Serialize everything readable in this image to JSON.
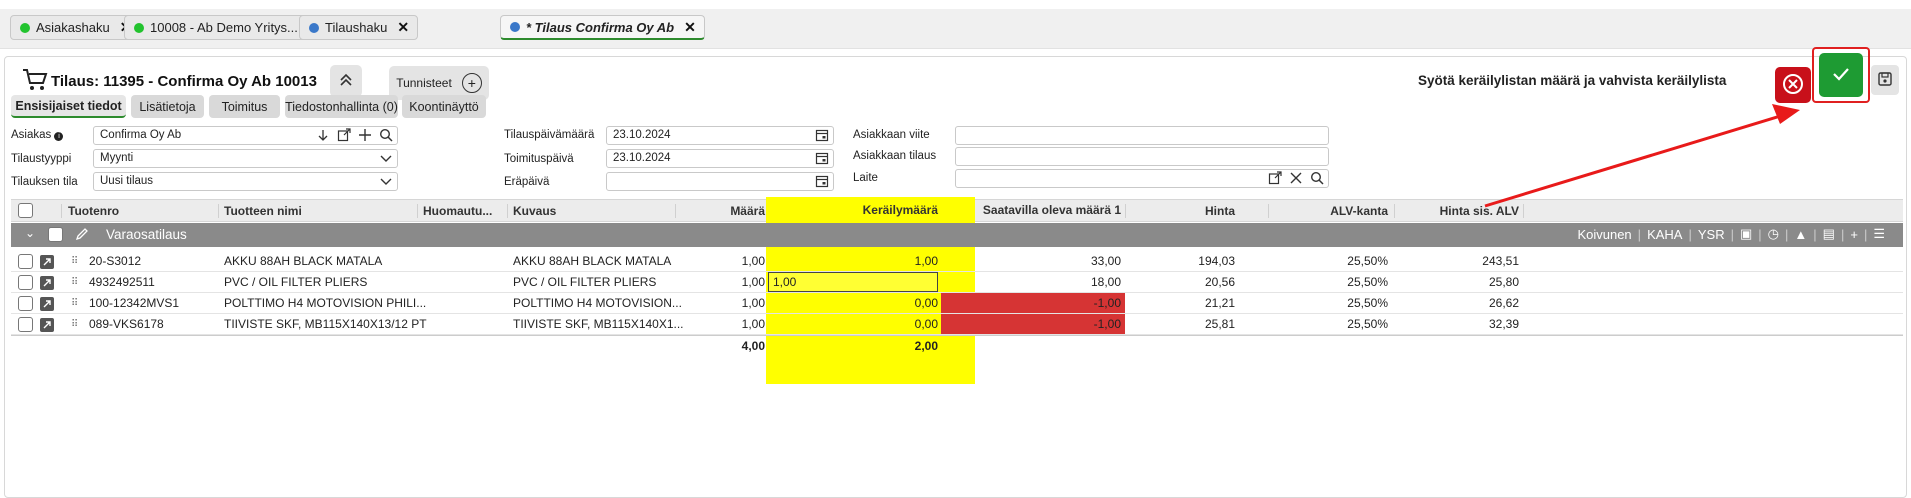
{
  "tabs": [
    {
      "label": "Asiakashaku",
      "dot": "#22c32e"
    },
    {
      "label": "10008 - Ab Demo Yritys...",
      "dot": "#22c32e"
    },
    {
      "label": "Tilaushaku",
      "dot": "#3a78c9"
    },
    {
      "label": "* Tilaus Confirma Oy Ab",
      "dot": "#3a78c9"
    }
  ],
  "header": {
    "title": "Tilaus: 11395 - Confirma Oy Ab 10013",
    "tags_label": "Tunnisteet",
    "instruction": "Syötä keräilylistan määrä ja vahvista keräilylista"
  },
  "subtabs": [
    "Ensisijaiset tiedot",
    "Lisätietoja",
    "Toimitus",
    "Tiedostonhallinta (0)",
    "Koontinäyttö"
  ],
  "form": {
    "customer_label": "Asiakas",
    "customer_value": "Confirma Oy Ab",
    "order_type_label": "Tilaustyyppi",
    "order_type_value": "Myynti",
    "order_status_label": "Tilauksen tila",
    "order_status_value": "Uusi tilaus",
    "order_date_label": "Tilauspäivämäärä",
    "order_date_value": "23.10.2024",
    "delivery_date_label": "Toimituspäivä",
    "delivery_date_value": "23.10.2024",
    "due_date_label": "Eräpäivä",
    "due_date_value": "",
    "customer_ref_label": "Asiakkaan viite",
    "customer_order_label": "Asiakkaan tilaus",
    "device_label": "Laite"
  },
  "table": {
    "columns": [
      "Tuotenro",
      "Tuotteen nimi",
      "Huomautu...",
      "Kuvaus",
      "Määrä",
      "Keräilymäärä",
      "Saatavilla oleva määrä 1",
      "Hinta",
      "ALV-kanta",
      "Hinta sis. ALV"
    ],
    "group_label": "Varaosatilaus",
    "group_tools": [
      "Koivunen",
      "KAHA",
      "YSR"
    ],
    "rows": [
      {
        "sku": "20-S3012",
        "name": "AKKU 88AH BLACK MATALA",
        "note": "",
        "desc": "AKKU 88AH BLACK MATALA",
        "qty": "1,00",
        "pick": "1,00",
        "avail": "33,00",
        "price": "194,03",
        "vat": "25,50%",
        "gross": "243,51",
        "negative": false,
        "editing": false
      },
      {
        "sku": "4932492511",
        "name": "PVC / OIL FILTER PLIERS",
        "note": "",
        "desc": "PVC / OIL FILTER PLIERS",
        "qty": "1,00",
        "pick": "1,00",
        "avail": "18,00",
        "price": "20,56",
        "vat": "25,50%",
        "gross": "25,80",
        "negative": false,
        "editing": true
      },
      {
        "sku": "100-12342MVS1",
        "name": "POLTTIMO H4 MOTOVISION PHILI...",
        "note": "",
        "desc": "POLTTIMO H4 MOTOVISION...",
        "qty": "1,00",
        "pick": "0,00",
        "avail": "-1,00",
        "price": "21,21",
        "vat": "25,50%",
        "gross": "26,62",
        "negative": true,
        "editing": false
      },
      {
        "sku": "089-VKS6178",
        "name": "TIIVISTE SKF, MB115X140X13/12 PT",
        "note": "",
        "desc": "TIIVISTE SKF, MB115X140X1...",
        "qty": "1,00",
        "pick": "0,00",
        "avail": "-1,00",
        "price": "25,81",
        "vat": "25,50%",
        "gross": "32,39",
        "negative": true,
        "editing": false
      }
    ],
    "total_qty": "4,00",
    "total_pick": "2,00"
  }
}
